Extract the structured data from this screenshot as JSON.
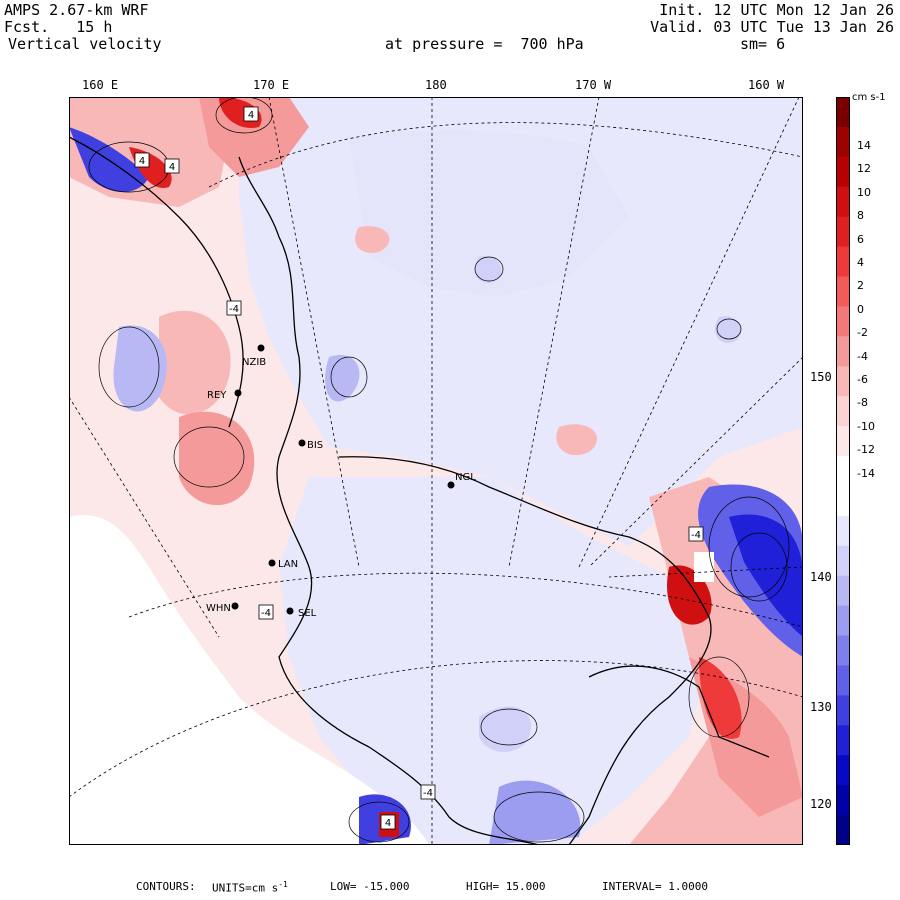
{
  "header": {
    "model": "AMPS 2.67-km WRF",
    "fcst_label": "Fcst.",
    "fcst_value": "15 h",
    "field": "Vertical velocity",
    "init": "Init. 12 UTC Mon 12 Jan 26",
    "valid": "Valid. 03 UTC Tue 13 Jan 26",
    "level_label": "at pressure =",
    "level_value": "700 hPa",
    "smoothing": "sm= 6"
  },
  "lon_labels": [
    "160 E",
    "170 E",
    "180",
    "170 W",
    "160 W"
  ],
  "lat_labels": [
    "150 W",
    "140 W",
    "130 W",
    "120 W"
  ],
  "stations": [
    "NZIB",
    "REY",
    "BIS",
    "NGL",
    "LAN",
    "WHN",
    "SEL"
  ],
  "colorbar": {
    "unit": "cm s-1",
    "ticks": [
      "14",
      "12",
      "10",
      "8",
      "6",
      "4",
      "2",
      "0",
      "-2",
      "-4",
      "-6",
      "-8",
      "-10",
      "-12",
      "-14"
    ],
    "colors": [
      "#7a0000",
      "#9c0000",
      "#b80000",
      "#d01010",
      "#e02020",
      "#ee3a3a",
      "#f55a5a",
      "#f57878",
      "#f59a9a",
      "#f8b8b8",
      "#fad4d4",
      "#fce8e8",
      "#ffffff",
      "#ffffff",
      "#e8e8fc",
      "#d0d0f8",
      "#b8b8f4",
      "#9c9cf0",
      "#7e7eec",
      "#6060e8",
      "#4040e0",
      "#2020d8",
      "#0808c8",
      "#0000a8",
      "#000088"
    ]
  },
  "footer": {
    "contours": "CONTOURS:",
    "units": "UNITS=cm s",
    "units_exp": "-1",
    "low": "LOW= -15.000",
    "high": "HIGH= 15.000",
    "interval": "INTERVAL= 1.0000"
  },
  "contour_values": [
    "4",
    "-4",
    "4",
    "-4",
    "4",
    "-4",
    "4",
    "-4"
  ]
}
